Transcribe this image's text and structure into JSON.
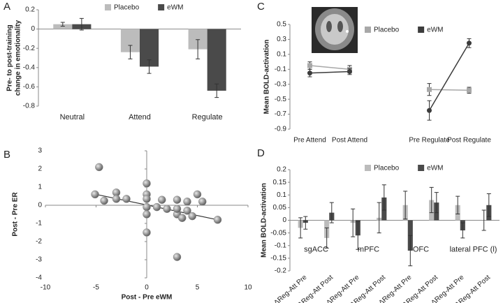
{
  "chart_data": [
    {
      "type": "bar",
      "panel": "A",
      "ylabel": [
        "Pre- to post-training",
        "change in emotionality"
      ],
      "categories": [
        "Neutral",
        "Attend",
        "Regulate"
      ],
      "series": [
        {
          "name": "Placebo",
          "color": "#bcbcbc",
          "values": [
            0.05,
            -0.24,
            -0.21
          ],
          "errors": [
            0.02,
            0.07,
            0.1
          ]
        },
        {
          "name": "eWM",
          "color": "#4a4a4a",
          "values": [
            0.05,
            -0.39,
            -0.64
          ],
          "errors": [
            0.06,
            0.07,
            0.07
          ]
        }
      ],
      "ylim": [
        -0.8,
        0.2
      ],
      "yticks": [
        -0.8,
        -0.6,
        -0.4,
        -0.2,
        0,
        0.2
      ]
    },
    {
      "type": "scatter",
      "panel": "B",
      "xlabel": "Post - Pre eWM",
      "ylabel": "Post - Pre ER",
      "color": "#8a8a8a",
      "x": [
        -4.7,
        -5.1,
        -4.2,
        -3,
        -3,
        -2,
        0,
        0,
        0,
        0,
        0,
        0,
        1,
        1.5,
        2,
        3,
        3,
        3,
        3.5,
        4,
        4,
        4.5,
        5,
        5.5,
        7,
        3
      ],
      "y": [
        2.1,
        0.6,
        0.25,
        0.7,
        0.35,
        0.35,
        1.2,
        0.6,
        0.35,
        -0.1,
        -0.5,
        -1.5,
        -0.1,
        0.3,
        -0.2,
        0.3,
        -0.5,
        -0.2,
        -0.7,
        0.2,
        -0.3,
        -0.6,
        0.6,
        0.2,
        -0.8,
        -2.85
      ],
      "trend": {
        "x": [
          -5,
          7
        ],
        "y": [
          0.6,
          -0.8
        ]
      },
      "xlim": [
        -10,
        10
      ],
      "xticks": [
        -10,
        -5,
        0,
        5,
        10
      ],
      "ylim": [
        -4,
        3
      ],
      "yticks": [
        -4,
        -3,
        -2,
        -1,
        0,
        1,
        2,
        3
      ]
    },
    {
      "type": "line",
      "panel": "C",
      "ylabel": "Mean BOLD-activation",
      "categories": [
        "Pre Attend",
        "Post Attend",
        null,
        "Pre Regulate",
        "Post Regulate"
      ],
      "series": [
        {
          "name": "Placebo",
          "color": "#a8a8a8",
          "marker": "square",
          "values": [
            -0.05,
            -0.1,
            null,
            -0.37,
            -0.38
          ],
          "errors": [
            0.05,
            0.05,
            null,
            0.08,
            0.04
          ]
        },
        {
          "name": "eWM",
          "color": "#3c3c3c",
          "marker": "circle",
          "values": [
            -0.15,
            -0.13,
            null,
            -0.65,
            0.25
          ],
          "errors": [
            0.05,
            0.04,
            null,
            0.13,
            0.06
          ]
        }
      ],
      "ylim": [
        -0.9,
        0.5
      ],
      "yticks": [
        -0.9,
        -0.7,
        -0.5,
        -0.3,
        -0.1,
        0.1,
        0.3,
        0.5
      ]
    },
    {
      "type": "bar",
      "panel": "D",
      "ylabel": "Mean BOLD-activation",
      "categories": [
        "ΔReg-Att Pre",
        "ΔReg-Att Post",
        "ΔReg-Att Pre",
        "ΔReg-Att Post",
        "ΔReg-Att Pre",
        "ΔReg-Att Post",
        "ΔReg-Att Pre",
        "ΔReg-Att Post"
      ],
      "groups": [
        "sgACC",
        "mPFC",
        "OFC",
        "lateral PFC (l)"
      ],
      "series": [
        {
          "name": "Placebo",
          "color": "#bcbcbc",
          "values": [
            -0.03,
            -0.07,
            -0.01,
            0.01,
            0.06,
            0.08,
            0.06,
            0.0
          ],
          "errors": [
            0.04,
            0.04,
            0.055,
            0.06,
            0.055,
            0.05,
            0.035,
            0.04
          ]
        },
        {
          "name": "eWM",
          "color": "#4a4a4a",
          "values": [
            -0.01,
            0.03,
            -0.06,
            0.09,
            -0.12,
            0.07,
            -0.04,
            0.06
          ],
          "errors": [
            0.025,
            0.04,
            0.055,
            0.05,
            0.06,
            0.04,
            0.03,
            0.045
          ]
        }
      ],
      "ylim": [
        -0.2,
        0.2
      ],
      "yticks": [
        -0.2,
        -0.15,
        -0.1,
        -0.05,
        0,
        0.05,
        0.1,
        0.15,
        0.2
      ]
    }
  ]
}
